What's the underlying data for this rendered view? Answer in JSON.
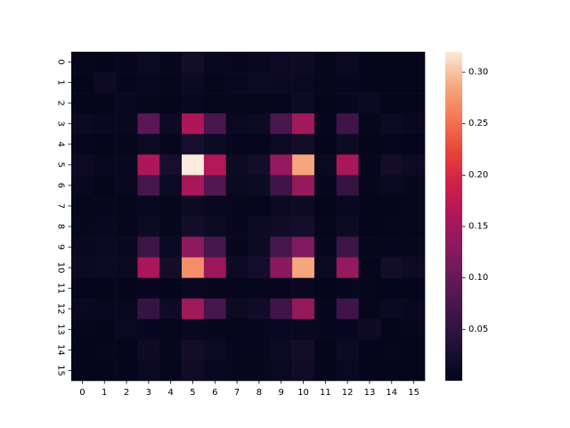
{
  "chart_data": {
    "type": "heatmap",
    "title": "",
    "xlabel": "",
    "ylabel": "",
    "x_categories": [
      "0",
      "1",
      "2",
      "3",
      "4",
      "5",
      "6",
      "7",
      "8",
      "9",
      "10",
      "11",
      "12",
      "13",
      "14",
      "15"
    ],
    "y_categories": [
      "0",
      "1",
      "2",
      "3",
      "4",
      "5",
      "6",
      "7",
      "8",
      "9",
      "10",
      "11",
      "12",
      "13",
      "14",
      "15"
    ],
    "values": [
      [
        0.004,
        0.003,
        0.006,
        0.012,
        0.005,
        0.02,
        0.009,
        0.006,
        0.008,
        0.013,
        0.015,
        0.004,
        0.011,
        0.003,
        0.003,
        0.003
      ],
      [
        0.003,
        0.014,
        0.004,
        0.007,
        0.004,
        0.011,
        0.004,
        0.009,
        0.012,
        0.011,
        0.01,
        0.004,
        0.006,
        0.003,
        0.003,
        0.003
      ],
      [
        0.003,
        0.003,
        0.008,
        0.005,
        0.003,
        0.007,
        0.004,
        0.004,
        0.005,
        0.006,
        0.012,
        0.003,
        0.006,
        0.01,
        0.003,
        0.003
      ],
      [
        0.011,
        0.007,
        0.009,
        0.09,
        0.013,
        0.16,
        0.075,
        0.01,
        0.012,
        0.075,
        0.15,
        0.006,
        0.065,
        0.004,
        0.012,
        0.008
      ],
      [
        0.004,
        0.003,
        0.004,
        0.012,
        0.004,
        0.025,
        0.012,
        0.004,
        0.004,
        0.012,
        0.02,
        0.003,
        0.012,
        0.003,
        0.004,
        0.003
      ],
      [
        0.014,
        0.008,
        0.009,
        0.16,
        0.025,
        0.32,
        0.165,
        0.012,
        0.02,
        0.14,
        0.285,
        0.01,
        0.155,
        0.004,
        0.02,
        0.013
      ],
      [
        0.008,
        0.003,
        0.007,
        0.07,
        0.012,
        0.155,
        0.08,
        0.01,
        0.012,
        0.065,
        0.14,
        0.006,
        0.055,
        0.004,
        0.01,
        0.005
      ],
      [
        0.004,
        0.005,
        0.004,
        0.009,
        0.004,
        0.012,
        0.009,
        0.005,
        0.004,
        0.011,
        0.012,
        0.003,
        0.007,
        0.003,
        0.003,
        0.004
      ],
      [
        0.005,
        0.008,
        0.004,
        0.012,
        0.004,
        0.02,
        0.012,
        0.006,
        0.012,
        0.016,
        0.022,
        0.004,
        0.012,
        0.003,
        0.004,
        0.004
      ],
      [
        0.008,
        0.01,
        0.008,
        0.06,
        0.01,
        0.135,
        0.07,
        0.006,
        0.012,
        0.07,
        0.12,
        0.006,
        0.06,
        0.005,
        0.006,
        0.005
      ],
      [
        0.011,
        0.012,
        0.01,
        0.155,
        0.02,
        0.27,
        0.145,
        0.014,
        0.022,
        0.13,
        0.285,
        0.01,
        0.14,
        0.004,
        0.02,
        0.014
      ],
      [
        0.003,
        0.003,
        0.003,
        0.006,
        0.003,
        0.007,
        0.005,
        0.004,
        0.004,
        0.006,
        0.007,
        0.003,
        0.005,
        0.004,
        0.003,
        0.003
      ],
      [
        0.01,
        0.007,
        0.008,
        0.055,
        0.015,
        0.15,
        0.07,
        0.012,
        0.016,
        0.065,
        0.14,
        0.006,
        0.065,
        0.004,
        0.011,
        0.009
      ],
      [
        0.004,
        0.003,
        0.01,
        0.006,
        0.004,
        0.009,
        0.005,
        0.004,
        0.006,
        0.007,
        0.009,
        0.006,
        0.006,
        0.015,
        0.003,
        0.004
      ],
      [
        0.003,
        0.004,
        0.003,
        0.015,
        0.004,
        0.02,
        0.012,
        0.006,
        0.005,
        0.012,
        0.02,
        0.003,
        0.012,
        0.003,
        0.004,
        0.003
      ],
      [
        0.003,
        0.003,
        0.003,
        0.01,
        0.004,
        0.016,
        0.009,
        0.005,
        0.005,
        0.01,
        0.016,
        0.003,
        0.01,
        0.003,
        0.003,
        0.003
      ]
    ],
    "vmin": 0.0,
    "vmax": 0.32,
    "colormap": "rocket",
    "colorbar_ticks": [
      "0.05",
      "0.10",
      "0.15",
      "0.20",
      "0.25",
      "0.30"
    ],
    "colorbar_position": "right",
    "grid": false
  }
}
